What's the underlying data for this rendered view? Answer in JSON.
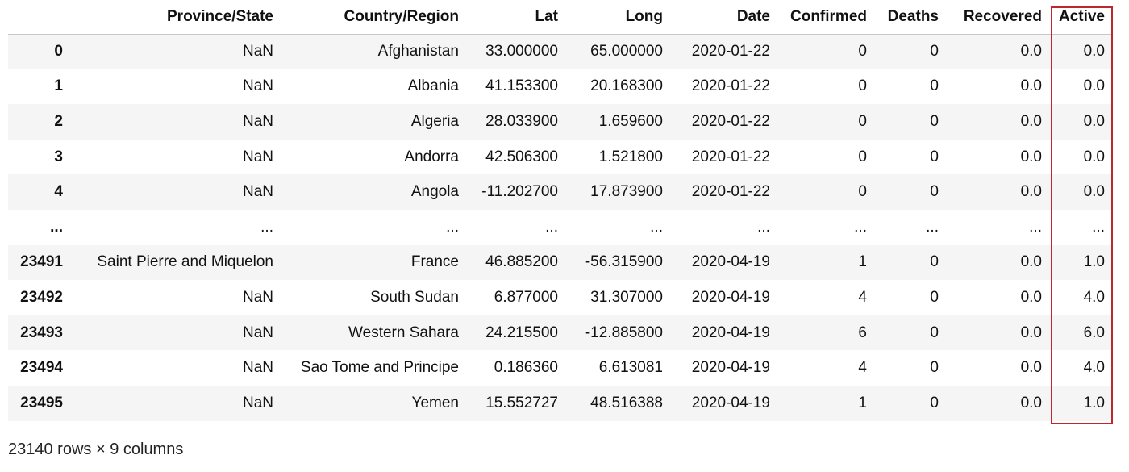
{
  "table": {
    "columns": [
      "",
      "Province/State",
      "Country/Region",
      "Lat",
      "Long",
      "Date",
      "Confirmed",
      "Deaths",
      "Recovered",
      "Active"
    ],
    "rows": [
      {
        "index": "0",
        "cells": [
          "NaN",
          "Afghanistan",
          "33.000000",
          "65.000000",
          "2020-01-22",
          "0",
          "0",
          "0.0",
          "0.0"
        ]
      },
      {
        "index": "1",
        "cells": [
          "NaN",
          "Albania",
          "41.153300",
          "20.168300",
          "2020-01-22",
          "0",
          "0",
          "0.0",
          "0.0"
        ]
      },
      {
        "index": "2",
        "cells": [
          "NaN",
          "Algeria",
          "28.033900",
          "1.659600",
          "2020-01-22",
          "0",
          "0",
          "0.0",
          "0.0"
        ]
      },
      {
        "index": "3",
        "cells": [
          "NaN",
          "Andorra",
          "42.506300",
          "1.521800",
          "2020-01-22",
          "0",
          "0",
          "0.0",
          "0.0"
        ]
      },
      {
        "index": "4",
        "cells": [
          "NaN",
          "Angola",
          "-11.202700",
          "17.873900",
          "2020-01-22",
          "0",
          "0",
          "0.0",
          "0.0"
        ]
      },
      {
        "index": "...",
        "cells": [
          "...",
          "...",
          "...",
          "...",
          "...",
          "...",
          "...",
          "...",
          "..."
        ]
      },
      {
        "index": "23491",
        "cells": [
          "Saint Pierre and Miquelon",
          "France",
          "46.885200",
          "-56.315900",
          "2020-04-19",
          "1",
          "0",
          "0.0",
          "1.0"
        ]
      },
      {
        "index": "23492",
        "cells": [
          "NaN",
          "South Sudan",
          "6.877000",
          "31.307000",
          "2020-04-19",
          "4",
          "0",
          "0.0",
          "4.0"
        ]
      },
      {
        "index": "23493",
        "cells": [
          "NaN",
          "Western Sahara",
          "24.215500",
          "-12.885800",
          "2020-04-19",
          "6",
          "0",
          "0.0",
          "6.0"
        ]
      },
      {
        "index": "23494",
        "cells": [
          "NaN",
          "Sao Tome and Principe",
          "0.186360",
          "6.613081",
          "2020-04-19",
          "4",
          "0",
          "0.0",
          "4.0"
        ]
      },
      {
        "index": "23495",
        "cells": [
          "NaN",
          "Yemen",
          "15.552727",
          "48.516388",
          "2020-04-19",
          "1",
          "0",
          "0.0",
          "1.0"
        ]
      }
    ]
  },
  "footer": {
    "shape_text": "23140 rows × 9 columns"
  },
  "highlight": {
    "column": "Active",
    "color": "#c0272d"
  }
}
